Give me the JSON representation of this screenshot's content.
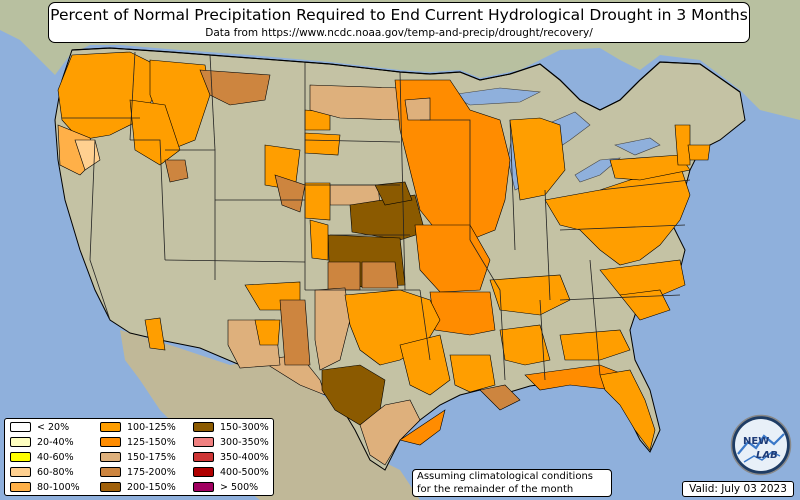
{
  "title": "Percent of Normal Precipitation Required to End Current Hydrological Drought in 3 Months",
  "subtitle": "Data from https://www.ncdc.noaa.gov/temp-and-precip/drought/recovery/",
  "note_line1": "Assuming climatological conditions",
  "note_line2": "for the remainder of the month",
  "valid": "Valid: July 03 2023",
  "logo_text": "NEW LAB",
  "legend": [
    {
      "label": "< 20%",
      "color": "#ffffff"
    },
    {
      "label": "20-40%",
      "color": "#ffffc0"
    },
    {
      "label": "40-60%",
      "color": "#ffff00"
    },
    {
      "label": "60-80%",
      "color": "#ffd090"
    },
    {
      "label": "80-100%",
      "color": "#ffb048"
    },
    {
      "label": "100-125%",
      "color": "#ff9e00"
    },
    {
      "label": "125-150%",
      "color": "#ff8c00"
    },
    {
      "label": "150-175%",
      "color": "#deb07c"
    },
    {
      "label": "175-200%",
      "color": "#cd853f"
    },
    {
      "label": "200-150%",
      "color": "#a0600a"
    },
    {
      "label": "150-300%",
      "color": "#8b5a00"
    },
    {
      "label": "300-350%",
      "color": "#f08080"
    },
    {
      "label": "350-400%",
      "color": "#cd3535"
    },
    {
      "label": "400-500%",
      "color": "#b00000"
    },
    {
      "label": "> 500%",
      "color": "#a00060"
    }
  ],
  "colors": {
    "ocean": "#8fb0dc",
    "land": "#c8c8a8",
    "land_green": "#a8c090"
  }
}
